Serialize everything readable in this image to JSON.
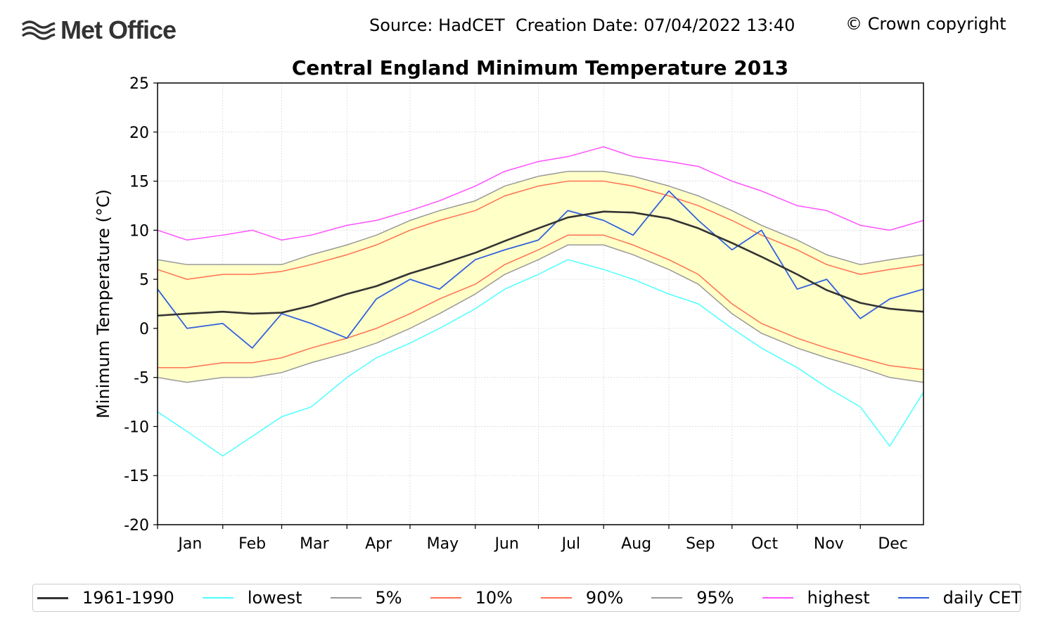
{
  "header": {
    "logo_text": "Met Office",
    "source_line": "Source: HadCET  Creation Date: 07/04/2022 13:40",
    "copyright": "© Crown copyright"
  },
  "colors": {
    "mean": "#333333",
    "lowest": "#4dffff",
    "pct5": "#999999",
    "pct10": "#ff7050",
    "pct90": "#ff7050",
    "pct95": "#999999",
    "highest": "#ff50ff",
    "daily": "#3060e0",
    "band": "#ffffc8"
  },
  "chart_data": {
    "type": "line",
    "title": "Central England Minimum Temperature 2013",
    "ylabel": "Minimum Temperature (°C)",
    "xlabel": "",
    "ylim": [
      -20,
      25
    ],
    "yticks": [
      25,
      20,
      15,
      10,
      5,
      0,
      -5,
      -10,
      -15,
      -20
    ],
    "month_labels": [
      "Jan",
      "Feb",
      "Mar",
      "Apr",
      "May",
      "Jun",
      "Jul",
      "Aug",
      "Sep",
      "Oct",
      "Nov",
      "Dec"
    ],
    "grid": true,
    "legend_position": "bottom",
    "x_day_of_year": [
      1,
      15,
      32,
      46,
      60,
      74,
      91,
      105,
      121,
      135,
      152,
      166,
      182,
      196,
      213,
      227,
      244,
      258,
      274,
      288,
      305,
      319,
      335,
      349,
      365
    ],
    "series": [
      {
        "name": "1961-1990",
        "key": "mean",
        "width": 2.6,
        "values": [
          1.3,
          1.5,
          1.7,
          1.5,
          1.6,
          2.3,
          3.5,
          4.3,
          5.6,
          6.5,
          7.7,
          8.9,
          10.2,
          11.3,
          11.9,
          11.8,
          11.2,
          10.2,
          8.7,
          7.3,
          5.5,
          3.9,
          2.6,
          2.0,
          1.7
        ]
      },
      {
        "name": "lowest",
        "key": "lowest",
        "width": 1.5,
        "values": [
          -8.5,
          -10.5,
          -13.0,
          -11.0,
          -9.0,
          -8.0,
          -5.0,
          -3.0,
          -1.5,
          0.0,
          2.0,
          4.0,
          5.5,
          7.0,
          6.0,
          5.0,
          3.5,
          2.5,
          0.0,
          -2.0,
          -4.0,
          -6.0,
          -8.0,
          -12.0,
          -6.5
        ]
      },
      {
        "name": "5%",
        "key": "pct5",
        "width": 1.5,
        "values": [
          -5.0,
          -5.5,
          -5.0,
          -5.0,
          -4.5,
          -3.5,
          -2.5,
          -1.5,
          0.0,
          1.5,
          3.5,
          5.5,
          7.0,
          8.5,
          8.5,
          7.5,
          6.0,
          4.5,
          1.5,
          -0.5,
          -2.0,
          -3.0,
          -4.0,
          -5.0,
          -5.5
        ]
      },
      {
        "name": "10%",
        "key": "pct10",
        "width": 1.5,
        "values": [
          -4.0,
          -4.0,
          -3.5,
          -3.5,
          -3.0,
          -2.0,
          -1.0,
          0.0,
          1.5,
          3.0,
          4.5,
          6.5,
          8.0,
          9.5,
          9.5,
          8.5,
          7.0,
          5.5,
          2.5,
          0.5,
          -1.0,
          -2.0,
          -3.0,
          -3.8,
          -4.2
        ]
      },
      {
        "name": "90%",
        "key": "pct90",
        "width": 1.5,
        "values": [
          6.0,
          5.0,
          5.5,
          5.5,
          5.8,
          6.5,
          7.5,
          8.5,
          10.0,
          11.0,
          12.0,
          13.5,
          14.5,
          15.0,
          15.0,
          14.5,
          13.5,
          12.5,
          11.0,
          9.5,
          8.0,
          6.5,
          5.5,
          6.0,
          6.5
        ]
      },
      {
        "name": "95%",
        "key": "pct95",
        "width": 1.5,
        "values": [
          7.0,
          6.5,
          6.5,
          6.5,
          6.5,
          7.5,
          8.5,
          9.5,
          11.0,
          12.0,
          13.0,
          14.5,
          15.5,
          16.0,
          16.0,
          15.5,
          14.5,
          13.5,
          12.0,
          10.5,
          9.0,
          7.5,
          6.5,
          7.0,
          7.5
        ]
      },
      {
        "name": "highest",
        "key": "highest",
        "width": 1.5,
        "values": [
          10.0,
          9.0,
          9.5,
          10.0,
          9.0,
          9.5,
          10.5,
          11.0,
          12.0,
          13.0,
          14.5,
          16.0,
          17.0,
          17.5,
          18.5,
          17.5,
          17.0,
          16.5,
          15.0,
          14.0,
          12.5,
          12.0,
          10.5,
          10.0,
          11.0
        ]
      },
      {
        "name": "daily CET",
        "key": "daily",
        "width": 1.8,
        "values": [
          4.0,
          0.0,
          0.5,
          -2.0,
          1.5,
          0.5,
          -1.0,
          3.0,
          5.0,
          4.0,
          7.0,
          8.0,
          9.0,
          12.0,
          11.0,
          9.5,
          14.0,
          11.0,
          8.0,
          10.0,
          4.0,
          5.0,
          1.0,
          3.0,
          4.0
        ]
      }
    ]
  },
  "legend": [
    {
      "label": "1961-1990",
      "key": "mean",
      "width": 3
    },
    {
      "label": "lowest",
      "key": "lowest",
      "width": 2
    },
    {
      "label": "5%",
      "key": "pct5",
      "width": 2
    },
    {
      "label": "10%",
      "key": "pct10",
      "width": 2
    },
    {
      "label": "90%",
      "key": "pct90",
      "width": 2
    },
    {
      "label": "95%",
      "key": "pct95",
      "width": 2
    },
    {
      "label": "highest",
      "key": "highest",
      "width": 2
    },
    {
      "label": "daily CET",
      "key": "daily",
      "width": 2
    }
  ]
}
